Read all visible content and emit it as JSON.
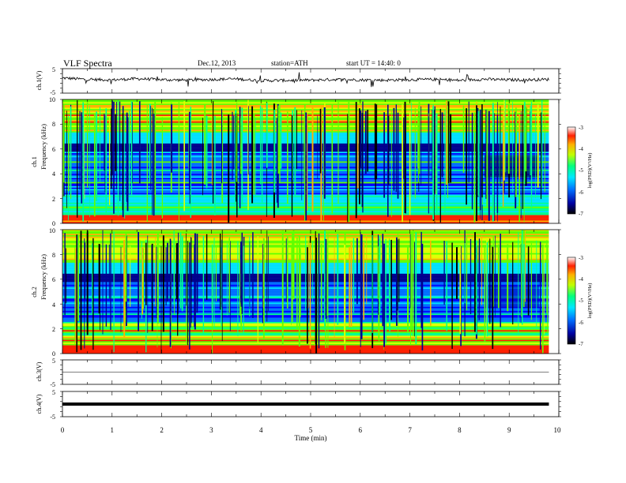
{
  "header": {
    "title": "VLF  Spectra",
    "date": "Dec.12, 2013",
    "station": "station=ATH",
    "start": "start  UT  =    14:40: 0"
  },
  "chart_data": [
    {
      "type": "line",
      "id": "ch1-waveform",
      "ylabel": "ch.1(V)",
      "ylim": [
        -5,
        5
      ],
      "y_ticks": [
        "5",
        "-5"
      ],
      "x": [
        0,
        0.5,
        1,
        1.5,
        2,
        2.5,
        3,
        3.5,
        4,
        4.5,
        5,
        5.5,
        6,
        6.5,
        7,
        7.5,
        8,
        8.5,
        9,
        9.5,
        9.8
      ],
      "values": [
        1.2,
        0.6,
        0.4,
        0.9,
        0.5,
        0.3,
        0.6,
        0.8,
        0.1,
        0.2,
        0.3,
        0.6,
        0.4,
        0.3,
        0.5,
        0.6,
        0.2,
        0.7,
        0.4,
        0.5,
        0.6
      ]
    },
    {
      "type": "heatmap",
      "id": "ch1-spectrogram",
      "ylabel_channel": "ch.1",
      "ylabel": "Frequency  (kHz)",
      "ylim": [
        0,
        10
      ],
      "y_ticks": [
        "0",
        "2",
        "4",
        "6",
        "8",
        "10"
      ],
      "colorbar": {
        "label": "log(PSD)(V²/Hz)",
        "range": [
          -7,
          -3
        ],
        "ticks": [
          "-3",
          "-4",
          "-5",
          "-6",
          "-7"
        ]
      }
    },
    {
      "type": "heatmap",
      "id": "ch2-spectrogram",
      "ylabel_channel": "ch.2",
      "ylabel": "Frequency  (kHz)",
      "ylim": [
        0,
        10
      ],
      "y_ticks": [
        "0",
        "2",
        "4",
        "6",
        "8",
        "10"
      ],
      "colorbar": {
        "label": "log(PSD)(V²/Hz)",
        "range": [
          -7,
          -3
        ],
        "ticks": [
          "-3",
          "-4",
          "-5",
          "-6",
          "-7"
        ]
      }
    },
    {
      "type": "line",
      "id": "ch3-waveform",
      "ylabel": "ch.3(V)",
      "ylim": [
        -5,
        5
      ],
      "y_ticks": [
        "5",
        "-5"
      ],
      "x": [
        0,
        9.8
      ],
      "values": [
        0,
        0
      ]
    },
    {
      "type": "line",
      "id": "ch4-waveform",
      "ylabel": "ch.4(V)",
      "ylim": [
        -5,
        5
      ],
      "y_ticks": [
        "5",
        "-5"
      ],
      "x": [
        0,
        9.8
      ],
      "values": [
        0,
        0
      ]
    }
  ],
  "x_axis": {
    "label": "Time  (min)",
    "range": [
      0,
      10
    ],
    "ticks": [
      "0",
      "1",
      "2",
      "3",
      "4",
      "5",
      "6",
      "7",
      "8",
      "9",
      "10"
    ]
  },
  "colors": {
    "spectrum": [
      "#000000",
      "#00008f",
      "#0000ff",
      "#0070ff",
      "#00e0ff",
      "#00ff90",
      "#60ff00",
      "#e0ff00",
      "#ffb000",
      "#ff2000",
      "#ffffff"
    ]
  }
}
